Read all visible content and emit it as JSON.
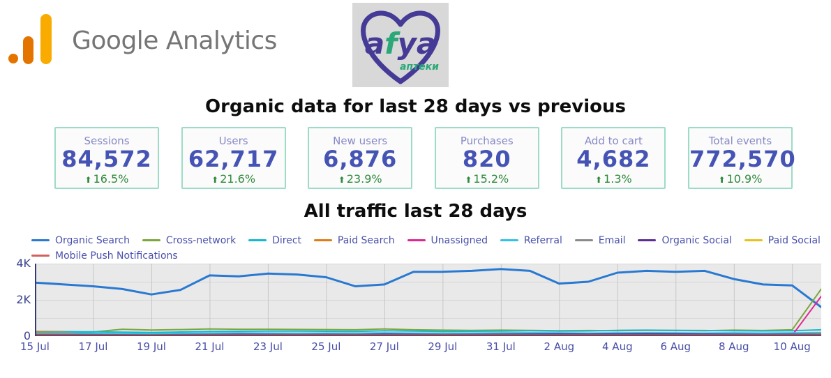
{
  "header": {
    "ga_logo_text": "Google Analytics",
    "afya": {
      "name_a1": "a",
      "name_f": "f",
      "name_rest": "ya",
      "subtitle": "аптеки"
    }
  },
  "titles": {
    "metrics": "Organic data for last 28 days vs previous",
    "traffic": "All traffic last 28 days"
  },
  "icons": {
    "up_arrow": "⬆"
  },
  "colors": {
    "card_border": "#9cdcc5",
    "card_label": "#8888c8",
    "card_value": "#4553b4",
    "delta_green": "#2f8a3c",
    "legend_text": "#4a51ac",
    "axis_text": "#434a9e",
    "ga_amber": "#f9ab00",
    "ga_orange": "#e37400",
    "brand_gray": "#757575",
    "afya_purple": "#453a96",
    "afya_teal": "#2aa87a",
    "plot_bg": "#e9e9e9"
  },
  "cards": [
    {
      "label": "Sessions",
      "value": "84,572",
      "delta": "16.5%"
    },
    {
      "label": "Users",
      "value": "62,717",
      "delta": "21.6%"
    },
    {
      "label": "New users",
      "value": "6,876",
      "delta": "23.9%"
    },
    {
      "label": "Purchases",
      "value": "820",
      "delta": "15.2%"
    },
    {
      "label": "Add to cart",
      "value": "4,682",
      "delta": "1.3%"
    },
    {
      "label": "Total events",
      "value": "772,570",
      "delta": "10.9%"
    }
  ],
  "chart_data": {
    "type": "line",
    "title": "All traffic last 28 days",
    "xlabel": "",
    "ylabel": "",
    "ylim": [
      0,
      4000
    ],
    "grid": true,
    "legend_position": "top",
    "yticks": [
      {
        "v": 0,
        "label": "0"
      },
      {
        "v": 2000,
        "label": "2K"
      },
      {
        "v": 4000,
        "label": "4K"
      }
    ],
    "ygrid": [
      1000,
      2000,
      3000,
      4000
    ],
    "tick_indices": [
      0,
      2,
      4,
      6,
      8,
      10,
      12,
      14,
      16,
      18,
      20,
      22,
      24,
      26
    ],
    "x": [
      "15 Jul",
      "16 Jul",
      "17 Jul",
      "18 Jul",
      "19 Jul",
      "20 Jul",
      "21 Jul",
      "22 Jul",
      "23 Jul",
      "24 Jul",
      "25 Jul",
      "26 Jul",
      "27 Jul",
      "28 Jul",
      "29 Jul",
      "30 Jul",
      "31 Jul",
      "1 Aug",
      "2 Aug",
      "3 Aug",
      "4 Aug",
      "5 Aug",
      "6 Aug",
      "7 Aug",
      "8 Aug",
      "9 Aug",
      "10 Aug",
      "11 Aug"
    ],
    "series": [
      {
        "name": "Organic Search",
        "color": "#2979d2",
        "values": [
          2950,
          2850,
          2750,
          2600,
          2300,
          2550,
          3350,
          3300,
          3450,
          3400,
          3250,
          2750,
          2850,
          3550,
          3550,
          3600,
          3700,
          3600,
          2900,
          3000,
          3500,
          3600,
          3550,
          3600,
          3150,
          2850,
          2800,
          1600
        ]
      },
      {
        "name": "Cross-network",
        "color": "#7aa63c",
        "values": [
          180,
          200,
          230,
          380,
          340,
          360,
          400,
          380,
          380,
          370,
          360,
          350,
          400,
          350,
          330,
          320,
          330,
          320,
          300,
          310,
          300,
          320,
          310,
          300,
          330,
          310,
          350,
          2600
        ]
      },
      {
        "name": "Direct",
        "color": "#16b8cc",
        "values": [
          260,
          250,
          240,
          220,
          200,
          230,
          260,
          270,
          280,
          280,
          270,
          260,
          300,
          280,
          260,
          270,
          280,
          300,
          280,
          290,
          320,
          330,
          320,
          310,
          300,
          290,
          300,
          350
        ]
      },
      {
        "name": "Paid Search",
        "color": "#dd7d15",
        "values": [
          230,
          210,
          120,
          100,
          110,
          130,
          150,
          150,
          140,
          130,
          140,
          130,
          160,
          140,
          130,
          120,
          130,
          140,
          130,
          120,
          110,
          120,
          130,
          120,
          110,
          120,
          130,
          150
        ]
      },
      {
        "name": "Unassigned",
        "color": "#de2795",
        "values": [
          25,
          25,
          25,
          25,
          25,
          25,
          25,
          25,
          25,
          25,
          25,
          25,
          25,
          25,
          25,
          25,
          25,
          25,
          25,
          25,
          25,
          25,
          25,
          25,
          25,
          25,
          40,
          2200
        ]
      },
      {
        "name": "Referral",
        "color": "#33c1e8",
        "values": [
          150,
          160,
          150,
          140,
          130,
          150,
          170,
          180,
          170,
          160,
          170,
          160,
          180,
          170,
          160,
          170,
          180,
          190,
          180,
          170,
          180,
          190,
          180,
          170,
          180,
          170,
          180,
          200
        ]
      },
      {
        "name": "Email",
        "color": "#8a8a8a",
        "values": [
          60,
          65,
          60,
          55,
          50,
          60,
          70,
          80,
          75,
          70,
          75,
          70,
          90,
          80,
          70,
          75,
          80,
          90,
          110,
          100,
          110,
          120,
          110,
          100,
          90,
          85,
          90,
          80
        ]
      },
      {
        "name": "Organic Social",
        "color": "#5e2d91",
        "values": [
          80,
          85,
          80,
          75,
          70,
          80,
          90,
          100,
          95,
          90,
          95,
          90,
          110,
          100,
          90,
          95,
          100,
          110,
          120,
          110,
          120,
          130,
          120,
          110,
          100,
          95,
          100,
          90
        ]
      },
      {
        "name": "Paid Social",
        "color": "#e8c21c",
        "values": [
          30,
          30,
          30,
          30,
          30,
          30,
          35,
          35,
          30,
          30,
          30,
          30,
          35,
          30,
          30,
          30,
          30,
          35,
          30,
          30,
          30,
          30,
          30,
          30,
          30,
          30,
          35,
          40
        ]
      },
      {
        "name": "Mobile Push Notifications",
        "color": "#d4605e",
        "values": [
          60,
          60,
          60,
          60,
          60,
          60,
          60,
          60,
          60,
          60,
          60,
          60,
          60,
          60,
          60,
          60,
          60,
          60,
          60,
          60,
          60,
          60,
          60,
          60,
          60,
          60,
          60,
          60
        ]
      }
    ]
  }
}
